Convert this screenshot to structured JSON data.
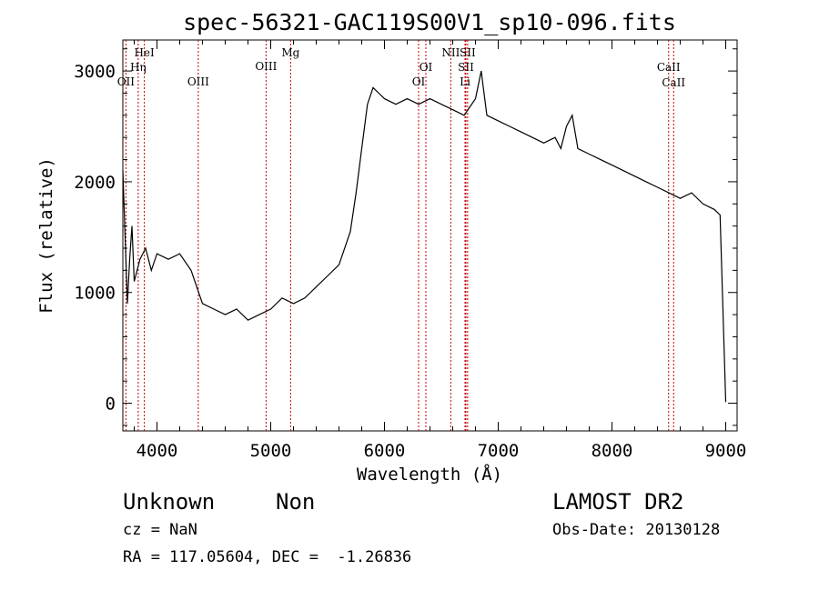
{
  "chart_data": {
    "type": "line",
    "title": "spec-56321-GAC119S00V1_sp10-096.fits",
    "xlabel": "Wavelength (Å)",
    "ylabel": "Flux (relative)",
    "xlim": [
      3700,
      9100
    ],
    "ylim": [
      -250,
      3280
    ],
    "xticks": [
      4000,
      5000,
      6000,
      7000,
      8000,
      9000
    ],
    "yticks": [
      0,
      1000,
      2000,
      3000
    ],
    "grid": false,
    "series": [
      {
        "x": [
          3700,
          3720,
          3740,
          3760,
          3780,
          3800,
          3850,
          3900,
          3950,
          4000,
          4100,
          4200,
          4300,
          4400,
          4500,
          4600,
          4700,
          4800,
          4900,
          5000,
          5100,
          5200,
          5300,
          5400,
          5500,
          5600,
          5700,
          5750,
          5800,
          5850,
          5900,
          5950,
          6000,
          6100,
          6200,
          6300,
          6400,
          6500,
          6600,
          6700,
          6800,
          6850,
          6900,
          7000,
          7100,
          7200,
          7300,
          7400,
          7500,
          7550,
          7600,
          7650,
          7700,
          7800,
          7900,
          8000,
          8100,
          8200,
          8300,
          8400,
          8500,
          8600,
          8700,
          8800,
          8900,
          8950,
          9000
        ],
        "y": [
          2100,
          1500,
          900,
          1300,
          1600,
          1100,
          1300,
          1400,
          1200,
          1350,
          1300,
          1350,
          1200,
          900,
          850,
          800,
          850,
          750,
          800,
          850,
          950,
          900,
          950,
          1050,
          1150,
          1250,
          1550,
          1900,
          2300,
          2700,
          2850,
          2800,
          2750,
          2700,
          2750,
          2700,
          2750,
          2700,
          2650,
          2600,
          2750,
          3000,
          2600,
          2550,
          2500,
          2450,
          2400,
          2350,
          2400,
          2300,
          2500,
          2600,
          2300,
          2250,
          2200,
          2150,
          2100,
          2050,
          2000,
          1950,
          1900,
          1850,
          1900,
          1800,
          1750,
          1700,
          10
        ]
      }
    ],
    "lines": [
      {
        "name": "OII",
        "x": 3727
      },
      {
        "name": "Hη",
        "x": 3835
      },
      {
        "name": "HeI",
        "x": 3889
      },
      {
        "name": "OIII",
        "x": 4363
      },
      {
        "name": "OIII",
        "x": 4959
      },
      {
        "name": "Mg",
        "x": 5175
      },
      {
        "name": "OI",
        "x": 6300
      },
      {
        "name": "OI",
        "x": 6364
      },
      {
        "name": "NII",
        "x": 6583
      },
      {
        "name": "SII",
        "x": 6716
      },
      {
        "name": "SII",
        "x": 6731
      },
      {
        "name": "Li",
        "x": 6708
      },
      {
        "name": "CaII",
        "x": 8498
      },
      {
        "name": "CaII",
        "x": 8542
      }
    ]
  },
  "info": {
    "class_label": "Unknown",
    "subclass_label": "Non",
    "cz": "cz = NaN",
    "coords": "RA = 117.05604, DEC =  -1.26836",
    "survey": "LAMOST DR2",
    "obs_date": "Obs-Date: 20130128"
  }
}
